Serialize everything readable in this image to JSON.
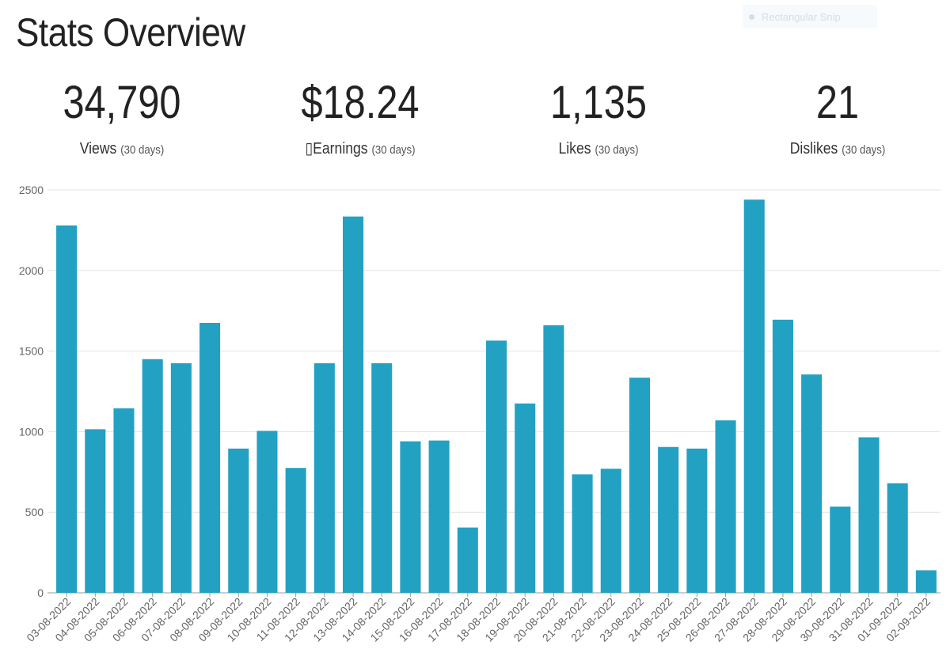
{
  "toolbar": {
    "ghost_label": "Rectangular Snip"
  },
  "header": {
    "title": "Stats Overview"
  },
  "stats": [
    {
      "value": "34,790",
      "label": "Views",
      "period": "(30 days)"
    },
    {
      "value": "$18.24",
      "label": "▯Earnings",
      "period": "(30 days)"
    },
    {
      "value": "1,135",
      "label": "Likes",
      "period": "(30 days)"
    },
    {
      "value": "21",
      "label": "Dislikes",
      "period": "(30 days)"
    }
  ],
  "chart_data": {
    "type": "bar",
    "categories": [
      "03-08-2022",
      "04-08-2022",
      "05-08-2022",
      "06-08-2022",
      "07-08-2022",
      "08-08-2022",
      "09-08-2022",
      "10-08-2022",
      "11-08-2022",
      "12-08-2022",
      "13-08-2022",
      "14-08-2022",
      "15-08-2022",
      "16-08-2022",
      "17-08-2022",
      "18-08-2022",
      "19-08-2022",
      "20-08-2022",
      "21-08-2022",
      "22-08-2022",
      "23-08-2022",
      "24-08-2022",
      "25-08-2022",
      "26-08-2022",
      "27-08-2022",
      "28-08-2022",
      "29-08-2022",
      "30-08-2022",
      "31-08-2022",
      "01-09-2022",
      "02-09-2022"
    ],
    "values": [
      2280,
      1015,
      1145,
      1450,
      1425,
      1675,
      895,
      1005,
      775,
      1425,
      2335,
      1425,
      940,
      945,
      405,
      1565,
      1175,
      1660,
      735,
      770,
      1335,
      905,
      895,
      1070,
      2440,
      1695,
      1355,
      535,
      965,
      680,
      140
    ],
    "ylim": [
      0,
      2500
    ],
    "yticks": [
      0,
      500,
      1000,
      1500,
      2000,
      2500
    ],
    "grid": true,
    "bar_color": "#23a1c3"
  }
}
